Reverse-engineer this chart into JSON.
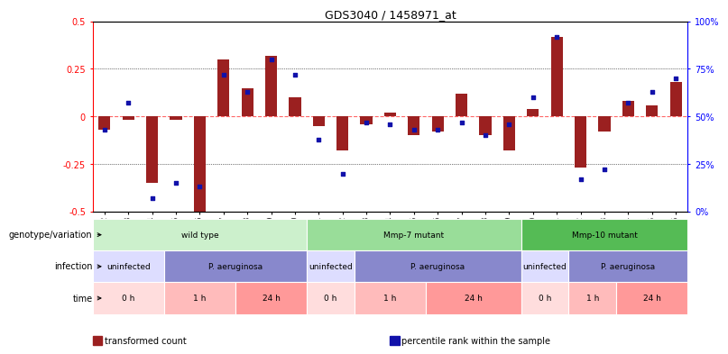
{
  "title": "GDS3040 / 1458971_at",
  "samples": [
    "GSM196062",
    "GSM196063",
    "GSM196064",
    "GSM196065",
    "GSM196066",
    "GSM196067",
    "GSM196068",
    "GSM196069",
    "GSM196070",
    "GSM196071",
    "GSM196072",
    "GSM196073",
    "GSM196074",
    "GSM196075",
    "GSM196076",
    "GSM196077",
    "GSM196078",
    "GSM196079",
    "GSM196080",
    "GSM196081",
    "GSM196082",
    "GSM196083",
    "GSM196084",
    "GSM196085",
    "GSM196086"
  ],
  "bar_values": [
    -0.07,
    -0.02,
    -0.35,
    -0.02,
    -0.5,
    0.3,
    0.15,
    0.32,
    0.1,
    -0.05,
    -0.18,
    -0.04,
    0.02,
    -0.1,
    -0.08,
    0.12,
    -0.1,
    -0.18,
    0.04,
    0.42,
    -0.27,
    -0.08,
    0.08,
    0.06,
    0.18
  ],
  "dot_values": [
    43,
    57,
    7,
    15,
    13,
    72,
    63,
    80,
    72,
    38,
    20,
    47,
    46,
    43,
    43,
    47,
    40,
    46,
    60,
    92,
    17,
    22,
    57,
    63,
    70
  ],
  "ylim": [
    -0.5,
    0.5
  ],
  "yticks": [
    -0.5,
    -0.25,
    0.0,
    0.25,
    0.5
  ],
  "ytick_labels": [
    "-0.5",
    "-0.25",
    "0",
    "0.25",
    "0.5"
  ],
  "y2ticks": [
    0,
    25,
    50,
    75,
    100
  ],
  "y2tick_labels": [
    "0%",
    "25%",
    "50%",
    "75%",
    "100%"
  ],
  "bar_color": "#9B2020",
  "dot_color": "#1111AA",
  "zero_line_color": "#FF6666",
  "genotype_groups": [
    {
      "label": "wild type",
      "start": 0,
      "end": 8,
      "color": "#ccf0cc"
    },
    {
      "label": "Mmp-7 mutant",
      "start": 9,
      "end": 17,
      "color": "#99dd99"
    },
    {
      "label": "Mmp-10 mutant",
      "start": 18,
      "end": 24,
      "color": "#55bb55"
    }
  ],
  "infection_groups": [
    {
      "label": "uninfected",
      "start": 0,
      "end": 2,
      "color": "#ddddff"
    },
    {
      "label": "P. aeruginosa",
      "start": 3,
      "end": 8,
      "color": "#8888cc"
    },
    {
      "label": "uninfected",
      "start": 9,
      "end": 10,
      "color": "#ddddff"
    },
    {
      "label": "P. aeruginosa",
      "start": 11,
      "end": 17,
      "color": "#8888cc"
    },
    {
      "label": "uninfected",
      "start": 18,
      "end": 19,
      "color": "#ddddff"
    },
    {
      "label": "P. aeruginosa",
      "start": 20,
      "end": 24,
      "color": "#8888cc"
    }
  ],
  "time_groups": [
    {
      "label": "0 h",
      "start": 0,
      "end": 2,
      "color": "#ffdddd"
    },
    {
      "label": "1 h",
      "start": 3,
      "end": 5,
      "color": "#ffbbbb"
    },
    {
      "label": "24 h",
      "start": 6,
      "end": 8,
      "color": "#ff9999"
    },
    {
      "label": "0 h",
      "start": 9,
      "end": 10,
      "color": "#ffdddd"
    },
    {
      "label": "1 h",
      "start": 11,
      "end": 13,
      "color": "#ffbbbb"
    },
    {
      "label": "24 h",
      "start": 14,
      "end": 17,
      "color": "#ff9999"
    },
    {
      "label": "0 h",
      "start": 18,
      "end": 19,
      "color": "#ffdddd"
    },
    {
      "label": "1 h",
      "start": 20,
      "end": 21,
      "color": "#ffbbbb"
    },
    {
      "label": "24 h",
      "start": 22,
      "end": 24,
      "color": "#ff9999"
    }
  ],
  "row_labels": [
    "genotype/variation",
    "infection",
    "time"
  ],
  "legend_items": [
    {
      "label": "transformed count",
      "color": "#9B2020"
    },
    {
      "label": "percentile rank within the sample",
      "color": "#1111AA"
    }
  ]
}
